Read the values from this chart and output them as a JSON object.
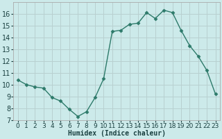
{
  "x": [
    0,
    1,
    2,
    3,
    4,
    5,
    6,
    7,
    8,
    9,
    10,
    11,
    12,
    13,
    14,
    15,
    16,
    17,
    18,
    19,
    20,
    21,
    22,
    23
  ],
  "y": [
    10.4,
    10.0,
    9.8,
    9.7,
    8.9,
    8.6,
    7.9,
    7.3,
    7.7,
    8.9,
    10.5,
    14.5,
    14.6,
    15.1,
    15.2,
    16.1,
    15.6,
    16.3,
    16.1,
    14.6,
    13.3,
    12.4,
    11.2,
    9.2
  ],
  "line_color": "#2d7a6a",
  "marker": "D",
  "marker_size": 2.5,
  "background_color": "#cceaea",
  "grid_color": "#b8d0d0",
  "xlabel": "Humidex (Indice chaleur)",
  "ylim": [
    7,
    17
  ],
  "xlim": [
    -0.5,
    23.5
  ],
  "yticks": [
    7,
    8,
    9,
    10,
    11,
    12,
    13,
    14,
    15,
    16
  ],
  "xticks": [
    0,
    1,
    2,
    3,
    4,
    5,
    6,
    7,
    8,
    9,
    10,
    11,
    12,
    13,
    14,
    15,
    16,
    17,
    18,
    19,
    20,
    21,
    22,
    23
  ],
  "xtick_labels": [
    "0",
    "1",
    "2",
    "3",
    "4",
    "5",
    "6",
    "7",
    "8",
    "9",
    "10",
    "11",
    "12",
    "13",
    "14",
    "15",
    "16",
    "17",
    "18",
    "19",
    "20",
    "21",
    "22",
    "23"
  ],
  "xlabel_fontsize": 7,
  "tick_fontsize": 6.5,
  "ytick_fontsize": 7
}
